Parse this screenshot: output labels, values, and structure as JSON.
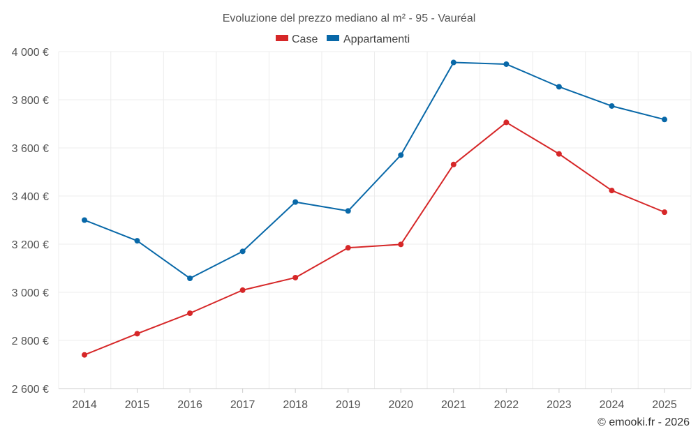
{
  "chart_data": {
    "type": "line",
    "title": "Evoluzione del prezzo mediano al m² - 95 - Vauréal",
    "categories": [
      "2014",
      "2015",
      "2016",
      "2017",
      "2018",
      "2019",
      "2020",
      "2021",
      "2022",
      "2023",
      "2024",
      "2025"
    ],
    "ylim": [
      2600,
      4000
    ],
    "yticks": [
      2600,
      2800,
      3000,
      3200,
      3400,
      3600,
      3800,
      4000
    ],
    "ytick_labels": [
      "2 600 €",
      "2 800 €",
      "3 000 €",
      "3 200 €",
      "3 400 €",
      "3 600 €",
      "3 800 €",
      "4 000 €"
    ],
    "grid": true,
    "legend_position": "top-center",
    "series": [
      {
        "name": "Case",
        "color": "#d62728",
        "values": [
          2740,
          2828,
          2913,
          3009,
          3061,
          3185,
          3199,
          3531,
          3706,
          3575,
          3423,
          3333
        ]
      },
      {
        "name": "Appartamenti",
        "color": "#0868a8",
        "values": [
          3300,
          3214,
          3058,
          3170,
          3375,
          3338,
          3570,
          3955,
          3948,
          3854,
          3774,
          3718
        ]
      }
    ]
  },
  "credit": "© emooki.fr - 2026"
}
